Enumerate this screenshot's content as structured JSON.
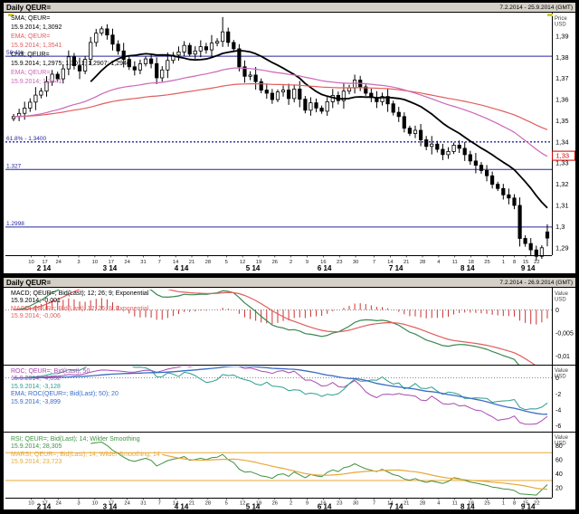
{
  "top_panel": {
    "title": "Daily QEUR=",
    "range": "7.2.2014 - 25.9.2014 (GMT)",
    "legend": [
      {
        "text": "SMA; QEUR=",
        "color": "#000000"
      },
      {
        "text": "15.9.2014; 1,3092",
        "color": "#000000"
      },
      {
        "text": "EMA; QEUR=",
        "color": "#e25d5d"
      },
      {
        "text": "15.9.2014; 1,3541",
        "color": "#e25d5d"
      },
      {
        "text": "Cndl; QEUR=",
        "color": "#000000"
      },
      {
        "text": "15.9.2014; 1,2975; 1,3011; 1,2907; 1,2946",
        "color": "#000000"
      },
      {
        "text": "EMA; QEUR=",
        "color": "#cc66b8"
      },
      {
        "text": "15.9.2014; 1,3441",
        "color": "#cc66b8"
      }
    ]
  },
  "bottom_panel": {
    "title": "Daily QEUR=",
    "range": "7.2.2014 - 26.9.2014 (GMT)",
    "macd_legend": [
      {
        "text": "MACD; QEUR=; Bid(Last); 12; 26; 9; Exponential",
        "color": "#000000"
      },
      {
        "text": "15.9.2014; -0,001",
        "color": "#000000"
      },
      {
        "text": "MACD; QEUR=; Bid(Last); 12; 26; 9; Exponential",
        "color": "#e25d5d"
      },
      {
        "text": "15.9.2014; -0,006",
        "color": "#e25d5d"
      }
    ],
    "roc_legend": [
      {
        "text": "ROC; QEUR=; Bid(Last); 50",
        "color": "#a84ab0"
      },
      {
        "text": "15.9.2014; -4,852",
        "color": "#a84ab0"
      },
      {
        "text": "15.9.2014; -3,128",
        "color": "#2e9e8e"
      },
      {
        "text": "EMA; ROC(QEUR=; Bid(Last); 50); 20",
        "color": "#3a6cc8"
      },
      {
        "text": "15.9.2014; -3,899",
        "color": "#3a6cc8"
      }
    ],
    "rsi_legend": [
      {
        "text": "RSI; QEUR=; Bid(Last); 14; Wilder Smoothing",
        "color": "#3f9242"
      },
      {
        "text": "15.9.2014; 28,305",
        "color": "#3f9242"
      },
      {
        "text": "MARSI; QEUR=; Bid(Last); 14; Wilder Smoothing; 14",
        "color": "#e8a838"
      },
      {
        "text": "15.9.2014; 23,723",
        "color": "#e8a838"
      }
    ]
  },
  "chart_data": [
    {
      "type": "candlestick",
      "title": "Daily QEUR=",
      "ylabel": "Price USD",
      "ylim": [
        1.3985,
        1.2865
      ],
      "grid": false,
      "legend_position": "top-left",
      "y_ticks": {
        "values": [
          1.39,
          1.38,
          1.37,
          1.36,
          1.35,
          1.34,
          1.33,
          1.32,
          1.31,
          1.3,
          1.29
        ],
        "labels": [
          "1,39",
          "1,38",
          "1,37",
          "1,36",
          "1,35",
          "1,34",
          "1,33",
          "1,32",
          "1,31",
          "1,3",
          "1,29"
        ]
      },
      "months": [
        {
          "label": "2 14",
          "start": 0,
          "count": 11,
          "days": [
            10,
            17,
            24
          ]
        },
        {
          "label": "3 14",
          "start": 11,
          "count": 13,
          "days": [
            3,
            10,
            17,
            24,
            31
          ]
        },
        {
          "label": "4 14",
          "start": 24,
          "count": 13,
          "days": [
            7,
            14,
            21,
            28
          ]
        },
        {
          "label": "5 14",
          "start": 37,
          "count": 13,
          "days": [
            5,
            12,
            19,
            26
          ]
        },
        {
          "label": "6 14",
          "start": 50,
          "count": 13,
          "days": [
            2,
            9,
            16,
            23,
            30
          ]
        },
        {
          "label": "7 14",
          "start": 63,
          "count": 13,
          "days": [
            7,
            14,
            21,
            28
          ]
        },
        {
          "label": "8 14",
          "start": 76,
          "count": 13,
          "days": [
            4,
            11,
            18,
            25
          ]
        },
        {
          "label": "9 14",
          "start": 89,
          "count": 9,
          "days": [
            1,
            8,
            15,
            22
          ]
        }
      ],
      "ohlc": [
        [
          1.351,
          1.3532,
          1.3498,
          1.352
        ],
        [
          1.352,
          1.3557,
          1.3498,
          1.3535
        ],
        [
          1.3535,
          1.359,
          1.3505,
          1.356
        ],
        [
          1.356,
          1.3606,
          1.3542,
          1.3588
        ],
        [
          1.3588,
          1.3659,
          1.355,
          1.3621
        ],
        [
          1.3621,
          1.3655,
          1.3606,
          1.364
        ],
        [
          1.364,
          1.3711,
          1.3614,
          1.3685
        ],
        [
          1.3685,
          1.374,
          1.3665,
          1.372
        ],
        [
          1.372,
          1.3732,
          1.3686,
          1.3698
        ],
        [
          1.3698,
          1.3767,
          1.3676,
          1.3745
        ],
        [
          1.3745,
          1.3832,
          1.3715,
          1.3802
        ],
        [
          1.3802,
          1.382,
          1.3742,
          1.376
        ],
        [
          1.376,
          1.3798,
          1.3697,
          1.3735
        ],
        [
          1.3735,
          1.3805,
          1.372,
          1.379
        ],
        [
          1.379,
          1.3896,
          1.3764,
          1.387
        ],
        [
          1.387,
          1.3934,
          1.385,
          1.3914
        ],
        [
          1.3914,
          1.3946,
          1.3902,
          1.3934
        ],
        [
          1.3934,
          1.3956,
          1.3883,
          1.3905
        ],
        [
          1.3905,
          1.3935,
          1.3832,
          1.3862
        ],
        [
          1.3862,
          1.388,
          1.3812,
          1.383
        ],
        [
          1.383,
          1.3868,
          1.3752,
          1.379
        ],
        [
          1.379,
          1.3805,
          1.374,
          1.3755
        ],
        [
          1.3755,
          1.3781,
          1.3714,
          1.374
        ],
        [
          1.374,
          1.3789,
          1.372,
          1.3769
        ],
        [
          1.3769,
          1.3804,
          1.3757,
          1.3792
        ],
        [
          1.3792,
          1.3814,
          1.3748,
          1.377
        ],
        [
          1.377,
          1.38,
          1.3673,
          1.3703
        ],
        [
          1.3703,
          1.3758,
          1.3685,
          1.374
        ],
        [
          1.374,
          1.3823,
          1.3702,
          1.3785
        ],
        [
          1.3785,
          1.3825,
          1.377,
          1.381
        ],
        [
          1.381,
          1.3851,
          1.3784,
          1.3825
        ],
        [
          1.3825,
          1.3876,
          1.3805,
          1.3856
        ],
        [
          1.3856,
          1.3868,
          1.3803,
          1.3815
        ],
        [
          1.3815,
          1.3852,
          1.3793,
          1.383
        ],
        [
          1.383,
          1.388,
          1.38,
          1.385
        ],
        [
          1.385,
          1.3868,
          1.3817,
          1.3835
        ],
        [
          1.3835,
          1.3905,
          1.3797,
          1.3867
        ],
        [
          1.3867,
          1.389,
          1.3852,
          1.3875
        ],
        [
          1.3875,
          1.399,
          1.3849,
          1.392
        ],
        [
          1.392,
          1.394,
          1.385,
          1.387
        ],
        [
          1.387,
          1.3882,
          1.3828,
          1.384
        ],
        [
          1.384,
          1.3862,
          1.3733,
          1.3755
        ],
        [
          1.3755,
          1.3785,
          1.368,
          1.371
        ],
        [
          1.371,
          1.3734,
          1.3692,
          1.3716
        ],
        [
          1.3716,
          1.3754,
          1.3647,
          1.3685
        ],
        [
          1.3685,
          1.37,
          1.363,
          1.3645
        ],
        [
          1.3645,
          1.3671,
          1.3604,
          1.363
        ],
        [
          1.363,
          1.365,
          1.358,
          1.36
        ],
        [
          1.36,
          1.3648,
          1.3588,
          1.3636
        ],
        [
          1.3636,
          1.3667,
          1.3614,
          1.3645
        ],
        [
          1.3645,
          1.3675,
          1.3575,
          1.3605
        ],
        [
          1.3605,
          1.3668,
          1.3587,
          1.365
        ],
        [
          1.365,
          1.3688,
          1.3564,
          1.3602
        ],
        [
          1.3602,
          1.3617,
          1.3535,
          1.355
        ],
        [
          1.355,
          1.3611,
          1.3524,
          1.3585
        ],
        [
          1.3585,
          1.3605,
          1.354,
          1.356
        ],
        [
          1.356,
          1.3572,
          1.3533,
          1.3545
        ],
        [
          1.3545,
          1.3612,
          1.3523,
          1.359
        ],
        [
          1.359,
          1.365,
          1.356,
          1.362
        ],
        [
          1.362,
          1.3638,
          1.3577,
          1.3595
        ],
        [
          1.3595,
          1.3678,
          1.3557,
          1.364
        ],
        [
          1.364,
          1.367,
          1.3625,
          1.3655
        ],
        [
          1.3655,
          1.3718,
          1.3629,
          1.3692
        ],
        [
          1.3692,
          1.3712,
          1.364,
          1.366
        ],
        [
          1.366,
          1.3672,
          1.3618,
          1.363
        ],
        [
          1.363,
          1.3652,
          1.3588,
          1.361
        ],
        [
          1.361,
          1.364,
          1.356,
          1.359
        ],
        [
          1.359,
          1.3633,
          1.3572,
          1.3615
        ],
        [
          1.3615,
          1.3653,
          1.3542,
          1.358
        ],
        [
          1.358,
          1.3595,
          1.3525,
          1.354
        ],
        [
          1.354,
          1.3566,
          1.3494,
          1.352
        ],
        [
          1.352,
          1.354,
          1.3445,
          1.3465
        ],
        [
          1.3465,
          1.3477,
          1.3428,
          1.344
        ],
        [
          1.344,
          1.3477,
          1.3418,
          1.3455
        ],
        [
          1.3455,
          1.3485,
          1.338,
          1.341
        ],
        [
          1.341,
          1.3428,
          1.3361,
          1.3379
        ],
        [
          1.3379,
          1.3428,
          1.3341,
          1.339
        ],
        [
          1.339,
          1.3405,
          1.335,
          1.3365
        ],
        [
          1.3365,
          1.3391,
          1.3314,
          1.334
        ],
        [
          1.334,
          1.3375,
          1.332,
          1.3355
        ],
        [
          1.3355,
          1.3397,
          1.3343,
          1.3385
        ],
        [
          1.3385,
          1.3407,
          1.3348,
          1.337
        ],
        [
          1.337,
          1.34,
          1.331,
          1.334
        ],
        [
          1.334,
          1.3358,
          1.3292,
          1.331
        ],
        [
          1.331,
          1.3348,
          1.3252,
          1.329
        ],
        [
          1.329,
          1.3305,
          1.325,
          1.3265
        ],
        [
          1.3265,
          1.3291,
          1.3214,
          1.324
        ],
        [
          1.324,
          1.326,
          1.318,
          1.32
        ],
        [
          1.32,
          1.3212,
          1.3168,
          1.318
        ],
        [
          1.318,
          1.3202,
          1.3128,
          1.315
        ],
        [
          1.315,
          1.318,
          1.3105,
          1.3135
        ],
        [
          1.3135,
          1.3153,
          1.3082,
          1.31
        ],
        [
          1.31,
          1.3138,
          1.2906,
          1.2944
        ],
        [
          1.2944,
          1.2959,
          1.2905,
          1.292
        ],
        [
          1.292,
          1.2946,
          1.2864,
          1.289
        ],
        [
          1.289,
          1.291,
          1.284,
          1.286
        ],
        [
          1.286,
          1.2912,
          1.2848,
          1.29
        ],
        [
          1.2975,
          1.3011,
          1.2907,
          1.2946
        ]
      ],
      "overlays": [
        {
          "kind": "SMA",
          "period": 15,
          "color": "#000000",
          "width": 1.8,
          "current": "1,3092"
        },
        {
          "kind": "EMA",
          "period": 100,
          "color": "#e25d5d",
          "width": 1.2,
          "current": "1,3541"
        },
        {
          "kind": "EMA",
          "period": 50,
          "color": "#cc66b8",
          "width": 1.2,
          "current": "1,3441"
        }
      ],
      "levels": [
        {
          "label": "56.4%",
          "value": 1.3805,
          "style": "solid",
          "color": "#26269c"
        },
        {
          "label": "61.8% - 1.3400",
          "value": 1.34,
          "style": "dotted",
          "color": "#26269c"
        },
        {
          "label": "1.327",
          "value": 1.327,
          "style": "solid",
          "color": "#26269c"
        },
        {
          "label": "1.2998",
          "value": 1.2998,
          "style": "solid",
          "color": "#26269c"
        }
      ],
      "axis_marker": {
        "label": "1,33",
        "value": 1.3335,
        "color": "#cc0000"
      }
    },
    {
      "type": "line",
      "name": "MACD",
      "params": [
        12,
        26,
        9
      ],
      "ylabel": "Value USD",
      "ylim": [
        0.004,
        -0.0115
      ],
      "zero_line": true,
      "y_ticks": {
        "values": [
          0,
          -0.005,
          -0.01
        ],
        "labels": [
          "0",
          "-0,005",
          "-0,01"
        ]
      },
      "current": {
        "macd": "-0,001",
        "signal": "-0,006"
      },
      "colors": {
        "macd": "#388a52",
        "signal": "#e25d5d",
        "hist": "#cc3333"
      }
    },
    {
      "type": "line",
      "name": "ROC",
      "ylabel": "Value USD",
      "ylim": [
        1.2,
        -6.5
      ],
      "zero_line": true,
      "y_ticks": {
        "values": [
          0,
          -2,
          -4,
          -6
        ],
        "labels": [
          "0",
          "-2",
          "-4",
          "-6"
        ]
      },
      "roc_periods": [
        50,
        20
      ],
      "ema_period": 20,
      "current": {
        "roc50": "-4,852",
        "roc20": "-3,128",
        "ema": "-3,899"
      },
      "colors": {
        "roc50": "#a84ab0",
        "roc20": "#2e9e8e",
        "ema": "#3a6cc8"
      }
    },
    {
      "type": "line",
      "name": "RSI",
      "ylabel": "Value USD",
      "ylim": [
        95,
        8
      ],
      "period": 14,
      "ma_period": 14,
      "ref_lines": [
        70,
        30
      ],
      "y_ticks": {
        "values": [
          80,
          60,
          40,
          20
        ],
        "labels": [
          "80",
          "60",
          "40",
          "20"
        ]
      },
      "current": {
        "rsi": "28,305",
        "marsi": "23,723"
      },
      "colors": {
        "rsi": "#3f9242",
        "marsi": "#e8a838",
        "ref": "#e8a838"
      }
    }
  ]
}
